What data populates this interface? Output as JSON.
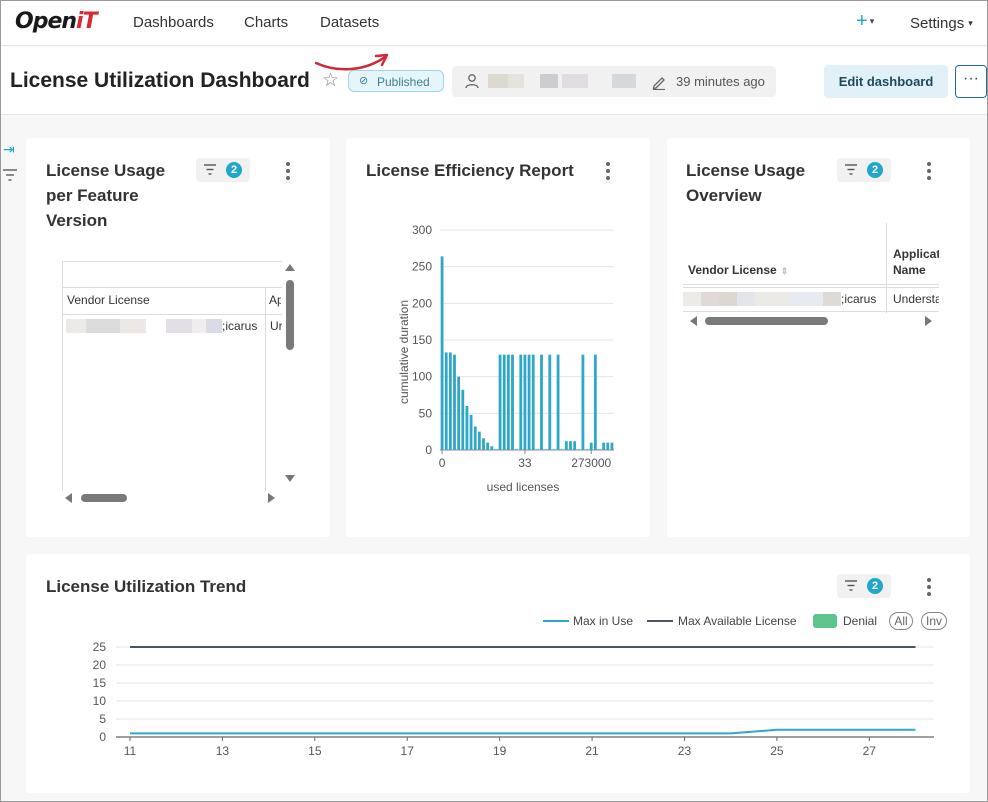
{
  "nav": {
    "logo_main": "Open",
    "logo_accent": "iT",
    "links": [
      "Dashboards",
      "Charts",
      "Datasets"
    ],
    "plus": "+",
    "settings": "Settings"
  },
  "header": {
    "title": "License Utilization Dashboard",
    "status": "Published",
    "modified": "39 minutes ago",
    "edit_button": "Edit dashboard",
    "more_button": "···"
  },
  "colors": {
    "accent": "#20a7c9",
    "bar": "#2fa7c6",
    "max_in_use": "#2fa7c6",
    "max_available": "#4b5562",
    "denial": "#5ec48d"
  },
  "cards": {
    "feature_version": {
      "title_lines": [
        "License Usage",
        "per Feature",
        "Version"
      ],
      "filter_count": "2",
      "columns": [
        "Vendor License",
        "Ap"
      ],
      "row": [
        "icarus",
        "Ur"
      ]
    },
    "efficiency": {
      "title": "License Efficiency Report"
    },
    "usage_overview": {
      "title_lines": [
        "License Usage",
        "Overview"
      ],
      "filter_count": "2",
      "columns": [
        "Vendor License",
        "Applicat",
        "Name"
      ],
      "row": [
        "icarus",
        "Understa"
      ]
    },
    "trend": {
      "title": "License Utilization Trend",
      "filter_count": "2",
      "legend": [
        "Max in Use",
        "Max Available License",
        "Denial"
      ],
      "toggles": [
        "All",
        "Inv"
      ]
    }
  },
  "chart_data": [
    {
      "type": "bar",
      "title": "License Efficiency Report",
      "xlabel": "used licenses",
      "ylabel": "cumulative duration",
      "ylim": [
        0,
        300
      ],
      "yticks": [
        0,
        50,
        100,
        150,
        200,
        250,
        300
      ],
      "xtick_labels": [
        {
          "label": "0",
          "bar_index": 0
        },
        {
          "label": "33",
          "bar_index": 20
        },
        {
          "label": "273000",
          "bar_index": 36
        }
      ],
      "values": [
        264,
        133,
        133,
        130,
        100,
        82,
        60,
        48,
        32,
        25,
        16,
        10,
        5,
        1,
        130,
        130,
        130,
        130,
        1,
        130,
        130,
        130,
        130,
        1,
        130,
        1,
        130,
        1,
        130,
        1,
        12,
        12,
        12,
        1,
        130,
        1,
        10,
        130,
        1,
        10,
        10,
        10
      ],
      "grid": true
    },
    {
      "type": "line",
      "title": "License Utilization Trend",
      "x": [
        11,
        12,
        13,
        14,
        15,
        16,
        17,
        18,
        19,
        20,
        21,
        22,
        23,
        24,
        25,
        26,
        27,
        28
      ],
      "xticks": [
        11,
        13,
        15,
        17,
        19,
        21,
        23,
        25,
        27
      ],
      "ylim": [
        0,
        25
      ],
      "yticks": [
        0,
        5,
        10,
        15,
        20,
        25
      ],
      "series": [
        {
          "name": "Max in Use",
          "values": [
            1,
            1,
            1,
            1,
            1,
            1,
            1,
            1,
            1,
            1,
            1,
            1,
            1,
            1,
            2,
            2,
            2,
            2
          ]
        },
        {
          "name": "Max Available License",
          "values": [
            25,
            25,
            25,
            25,
            25,
            25,
            25,
            25,
            25,
            25,
            25,
            25,
            25,
            25,
            25,
            25,
            25,
            25
          ]
        },
        {
          "name": "Denial",
          "values": [
            0,
            0,
            0,
            0,
            0,
            0,
            0,
            0,
            0,
            0,
            0,
            0,
            0,
            0,
            0,
            0,
            0,
            0
          ]
        }
      ],
      "legend": "top-right",
      "grid": true
    }
  ]
}
